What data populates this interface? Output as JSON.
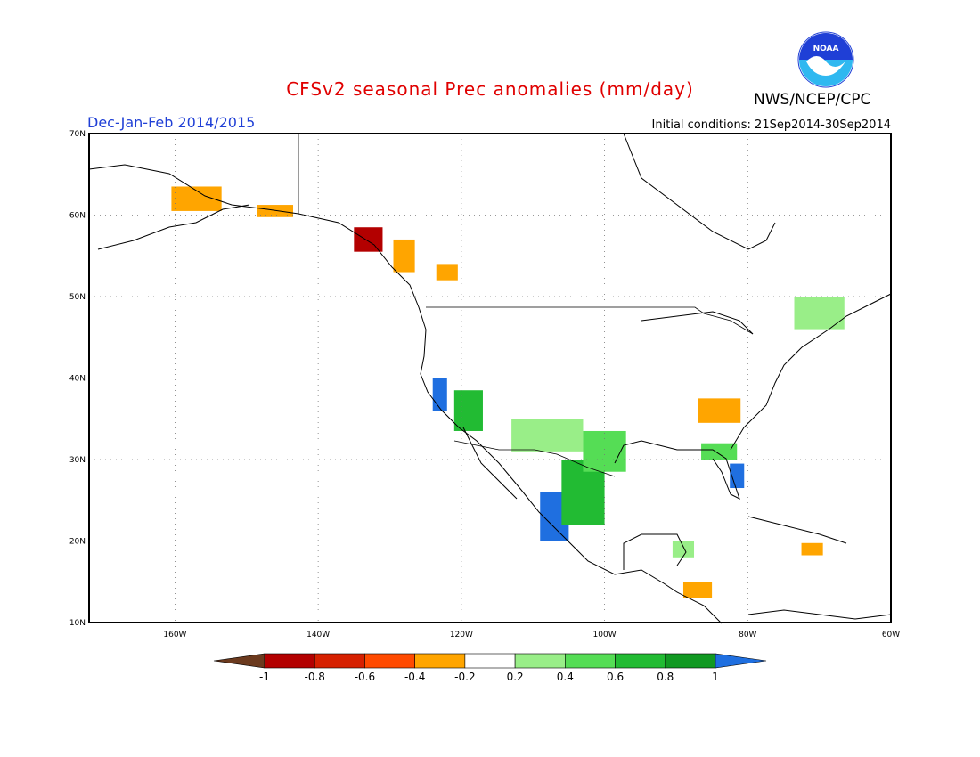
{
  "header": {
    "title": "CFSv2 seasonal Prec anomalies (mm/day)",
    "subtitle": "Dec-Jan-Feb 2014/2015",
    "initial_conditions": "Initial conditions: 21Sep2014-30Sep2014",
    "agency": "NWS/NCEP/CPC",
    "logo_text": "NOAA"
  },
  "map": {
    "lon_range": [
      -172,
      -60
    ],
    "lat_range": [
      10,
      70
    ],
    "lon_ticks": [
      "160W",
      "140W",
      "120W",
      "100W",
      "80W",
      "60W"
    ],
    "lon_tick_values": [
      -160,
      -140,
      -120,
      -100,
      -80,
      -60
    ],
    "lat_ticks": [
      "10N",
      "20N",
      "30N",
      "40N",
      "50N",
      "60N",
      "70N"
    ],
    "lat_tick_values": [
      10,
      20,
      30,
      40,
      50,
      60,
      70
    ],
    "grid": "dotted"
  },
  "colorbar": {
    "labels": [
      "-1",
      "-0.8",
      "-0.6",
      "-0.4",
      "-0.2",
      "0.2",
      "0.4",
      "0.6",
      "0.8",
      "1"
    ],
    "colors": [
      "#6b3a1e",
      "#b30000",
      "#d62000",
      "#ff4a00",
      "#ffa500",
      "#ffffff",
      "#99ee88",
      "#55dd55",
      "#22bb33",
      "#119922",
      "#1f6fe0"
    ]
  },
  "anomaly_regions": [
    {
      "name": "alaska-west",
      "color": "#ffa500",
      "lon": -157,
      "lat": 62,
      "w": 7,
      "h": 3
    },
    {
      "name": "alaska-south",
      "color": "#ffa500",
      "lon": -146,
      "lat": 60.5,
      "w": 5,
      "h": 1.5
    },
    {
      "name": "bc-coast",
      "color": "#b30000",
      "lon": -133,
      "lat": 57,
      "w": 4,
      "h": 3
    },
    {
      "name": "bc-coast-orange",
      "color": "#ffa500",
      "lon": -128,
      "lat": 55,
      "w": 3,
      "h": 4
    },
    {
      "name": "bc-interior",
      "color": "#ffa500",
      "lon": -122,
      "lat": 53,
      "w": 3,
      "h": 2
    },
    {
      "name": "california-coast",
      "color": "#1f6fe0",
      "lon": -123,
      "lat": 38,
      "w": 2,
      "h": 4
    },
    {
      "name": "california-green",
      "color": "#22bb33",
      "lon": -119,
      "lat": 36,
      "w": 4,
      "h": 5
    },
    {
      "name": "mexico-west",
      "color": "#1f6fe0",
      "lon": -107,
      "lat": 23,
      "w": 4,
      "h": 6
    },
    {
      "name": "mexico-green",
      "color": "#22bb33",
      "lon": -103,
      "lat": 26,
      "w": 6,
      "h": 8
    },
    {
      "name": "southwest-us",
      "color": "#99ee88",
      "lon": -108,
      "lat": 33,
      "w": 10,
      "h": 4
    },
    {
      "name": "texas",
      "color": "#55dd55",
      "lon": -100,
      "lat": 31,
      "w": 6,
      "h": 5
    },
    {
      "name": "ohio-valley",
      "color": "#ffa500",
      "lon": -84,
      "lat": 36,
      "w": 6,
      "h": 3
    },
    {
      "name": "florida",
      "color": "#1f6fe0",
      "lon": -81.5,
      "lat": 28,
      "w": 2,
      "h": 3
    },
    {
      "name": "southeast-green",
      "color": "#55dd55",
      "lon": -84,
      "lat": 31,
      "w": 5,
      "h": 2
    },
    {
      "name": "northeast-canada",
      "color": "#99ee88",
      "lon": -70,
      "lat": 48,
      "w": 7,
      "h": 4
    },
    {
      "name": "central-america",
      "color": "#ffa500",
      "lon": -87,
      "lat": 14,
      "w": 4,
      "h": 2
    },
    {
      "name": "caribbean",
      "color": "#ffa500",
      "lon": -71,
      "lat": 19,
      "w": 3,
      "h": 1.5
    },
    {
      "name": "yucatan",
      "color": "#99ee88",
      "lon": -89,
      "lat": 19,
      "w": 3,
      "h": 2
    }
  ]
}
